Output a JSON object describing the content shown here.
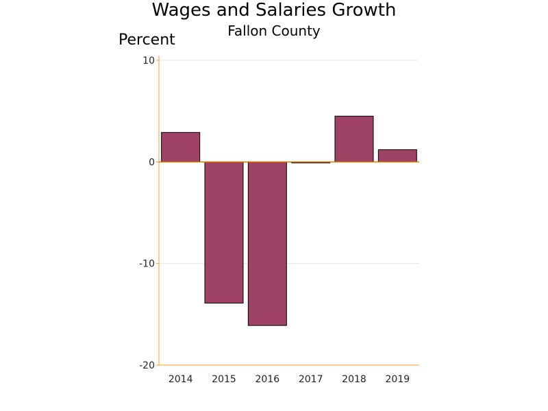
{
  "chart_data": {
    "type": "bar",
    "title": "Wages and Salaries Growth",
    "subtitle": "Fallon County",
    "ylabel": "Percent",
    "xlabel": "",
    "categories": [
      "2014",
      "2015",
      "2016",
      "2017",
      "2018",
      "2019"
    ],
    "values": [
      2.9,
      -13.9,
      -16.1,
      -0.1,
      4.5,
      1.2
    ],
    "ylim": [
      -20,
      10
    ],
    "yticks": [
      10,
      0,
      -10,
      -20
    ],
    "grid": true,
    "legend": "none",
    "colors": {
      "bar_fill": "#9e4266",
      "bar_stroke": "#000000",
      "axis": "#f0a020",
      "zero_line": "#e07800",
      "grid": "#e6e6e6"
    }
  }
}
